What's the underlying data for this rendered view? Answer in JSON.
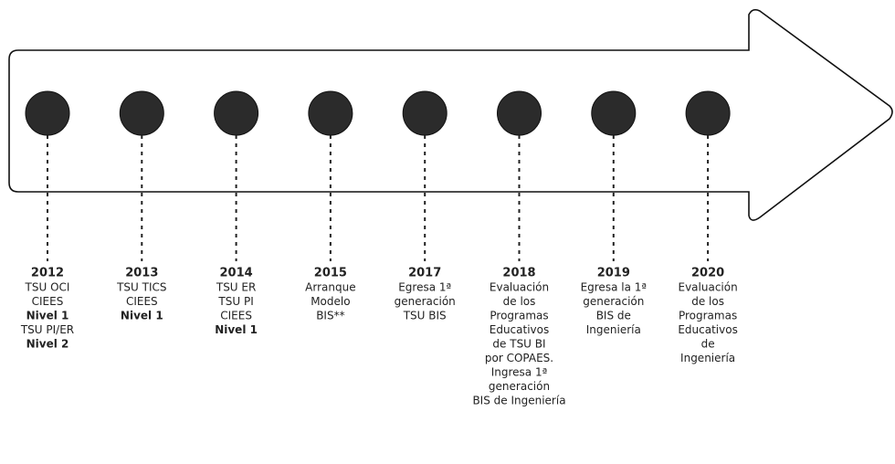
{
  "events": [
    {
      "year": "2012",
      "lines": [
        "TSU OCI",
        "CIEES",
        {
          "text": "Nivel 1",
          "bold": true
        },
        "TSU PI/ER",
        {
          "text": "Nivel 2",
          "bold": true
        }
      ]
    },
    {
      "year": "2013",
      "lines": [
        "TSU TICS",
        "CIEES",
        {
          "text": "Nivel 1",
          "bold": true
        }
      ]
    },
    {
      "year": "2014",
      "lines": [
        "TSU ER",
        "TSU PI",
        "CIEES",
        {
          "text": "Nivel 1",
          "bold": true
        }
      ]
    },
    {
      "year": "2015",
      "lines": [
        "Arranque",
        "Modelo",
        "BIS**"
      ]
    },
    {
      "year": "2017",
      "lines": [
        "Egresa 1ª",
        "generación",
        "TSU BIS"
      ]
    },
    {
      "year": "2018",
      "lines": [
        "Evaluación",
        "de los",
        "Programas",
        "Educativos",
        "de TSU BI",
        "por COPAES.",
        "Ingresa 1ª",
        "generación",
        "BIS de Ingeniería"
      ]
    },
    {
      "year": "2019",
      "lines": [
        "Egresa la 1ª",
        "generación",
        "BIS de",
        "Ingeniería"
      ]
    },
    {
      "year": "2020",
      "lines": [
        "Evaluación",
        "de los",
        "Programas",
        "Educativos",
        "de",
        "Ingeniería"
      ]
    }
  ]
}
